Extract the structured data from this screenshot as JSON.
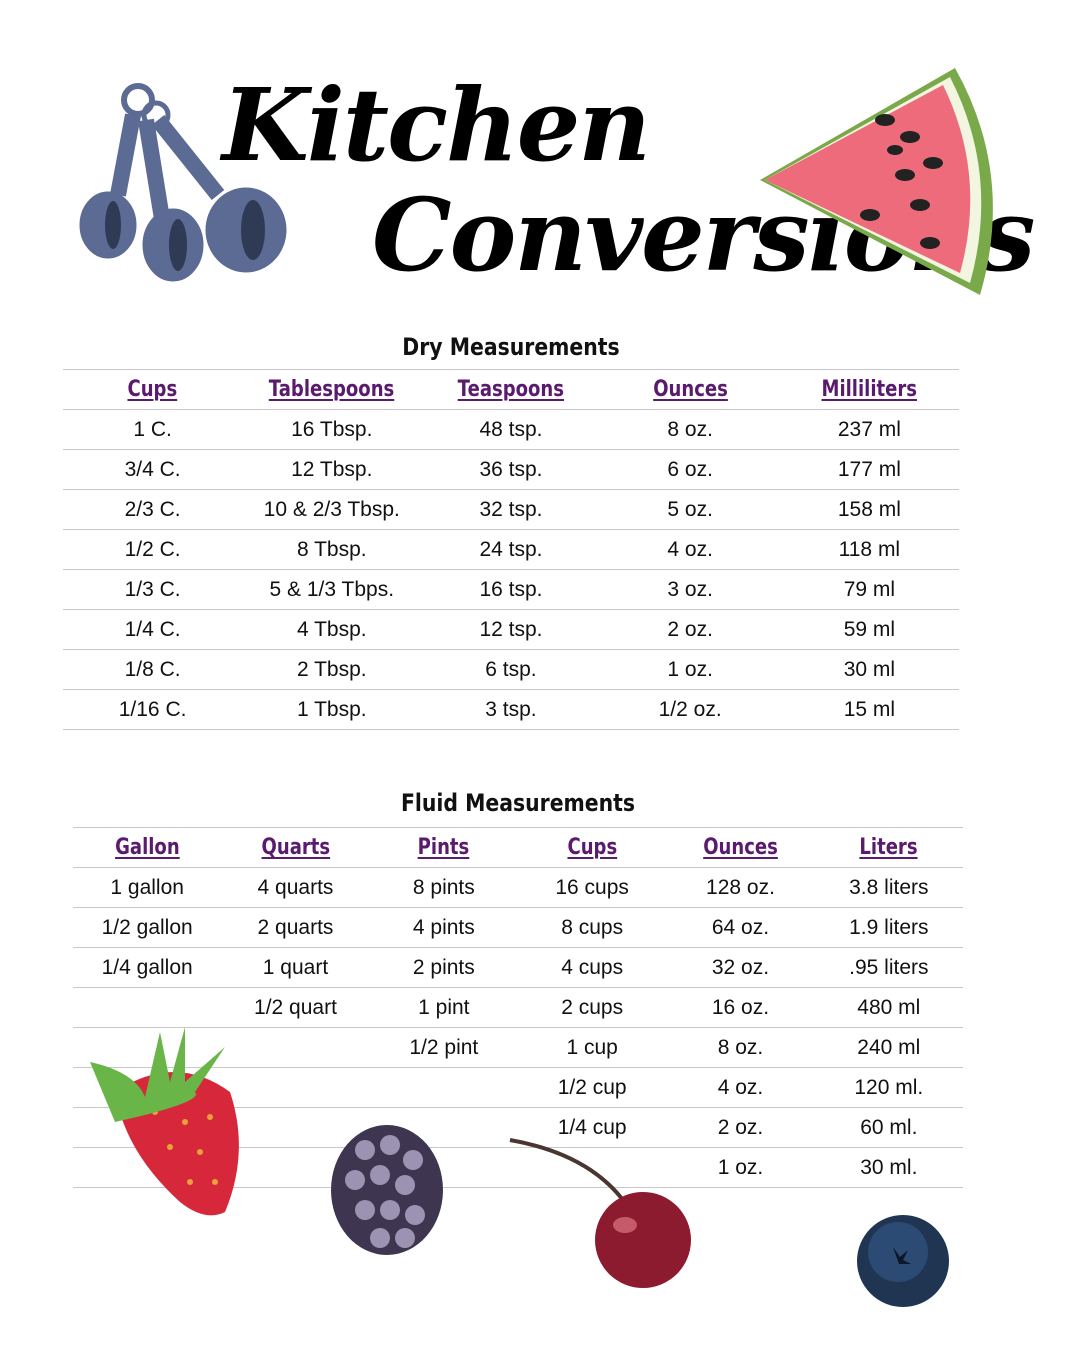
{
  "title": {
    "line1": "Kitchen",
    "line2": "Conversions"
  },
  "dry": {
    "title": "Dry Measurements",
    "headers": [
      "Cups",
      "Tablespoons",
      "Teaspoons",
      "Ounces",
      "Milliliters"
    ],
    "rows": [
      [
        "1 C.",
        "16 Tbsp.",
        "48 tsp.",
        "8 oz.",
        "237 ml"
      ],
      [
        "3/4 C.",
        "12 Tbsp.",
        "36 tsp.",
        "6 oz.",
        "177 ml"
      ],
      [
        "2/3 C.",
        "10 & 2/3 Tbsp.",
        "32 tsp.",
        "5 oz.",
        "158 ml"
      ],
      [
        "1/2 C.",
        "8 Tbsp.",
        "24 tsp.",
        "4 oz.",
        "118 ml"
      ],
      [
        "1/3 C.",
        "5 & 1/3 Tbps.",
        "16 tsp.",
        "3 oz.",
        "79 ml"
      ],
      [
        "1/4 C.",
        "4 Tbsp.",
        "12 tsp.",
        "2 oz.",
        "59 ml"
      ],
      [
        "1/8 C.",
        "2 Tbsp.",
        "6 tsp.",
        "1 oz.",
        "30 ml"
      ],
      [
        "1/16 C.",
        "1 Tbsp.",
        "3 tsp.",
        "1/2 oz.",
        "15 ml"
      ]
    ]
  },
  "fluid": {
    "title": "Fluid Measurements",
    "headers": [
      "Gallon",
      "Quarts",
      "Pints",
      "Cups",
      "Ounces",
      "Liters"
    ],
    "rows": [
      [
        "1 gallon",
        "4 quarts",
        "8 pints",
        "16 cups",
        "128 oz.",
        "3.8 liters"
      ],
      [
        "1/2 gallon",
        "2 quarts",
        "4 pints",
        "8 cups",
        "64 oz.",
        "1.9 liters"
      ],
      [
        "1/4 gallon",
        "1 quart",
        "2 pints",
        "4 cups",
        "32 oz.",
        ".95 liters"
      ],
      [
        "",
        "1/2 quart",
        "1 pint",
        "2 cups",
        "16 oz.",
        "480 ml"
      ],
      [
        "",
        "",
        "1/2 pint",
        "1 cup",
        "8 oz.",
        "240 ml"
      ],
      [
        "",
        "",
        "",
        "1/2 cup",
        "4 oz.",
        "120 ml."
      ],
      [
        "",
        "",
        "",
        "1/4 cup",
        "2 oz.",
        "60 ml."
      ],
      [
        "",
        "",
        "",
        "",
        "1 oz.",
        "30 ml."
      ]
    ]
  },
  "colors": {
    "header": "#5a1a6e",
    "rule": "#c8c8c8",
    "spoons": "#5b6b94"
  },
  "icons": [
    "measuring-spoons-icon",
    "watermelon-icon",
    "strawberry-icon",
    "blackberry-icon",
    "cherry-icon",
    "blueberry-icon"
  ]
}
